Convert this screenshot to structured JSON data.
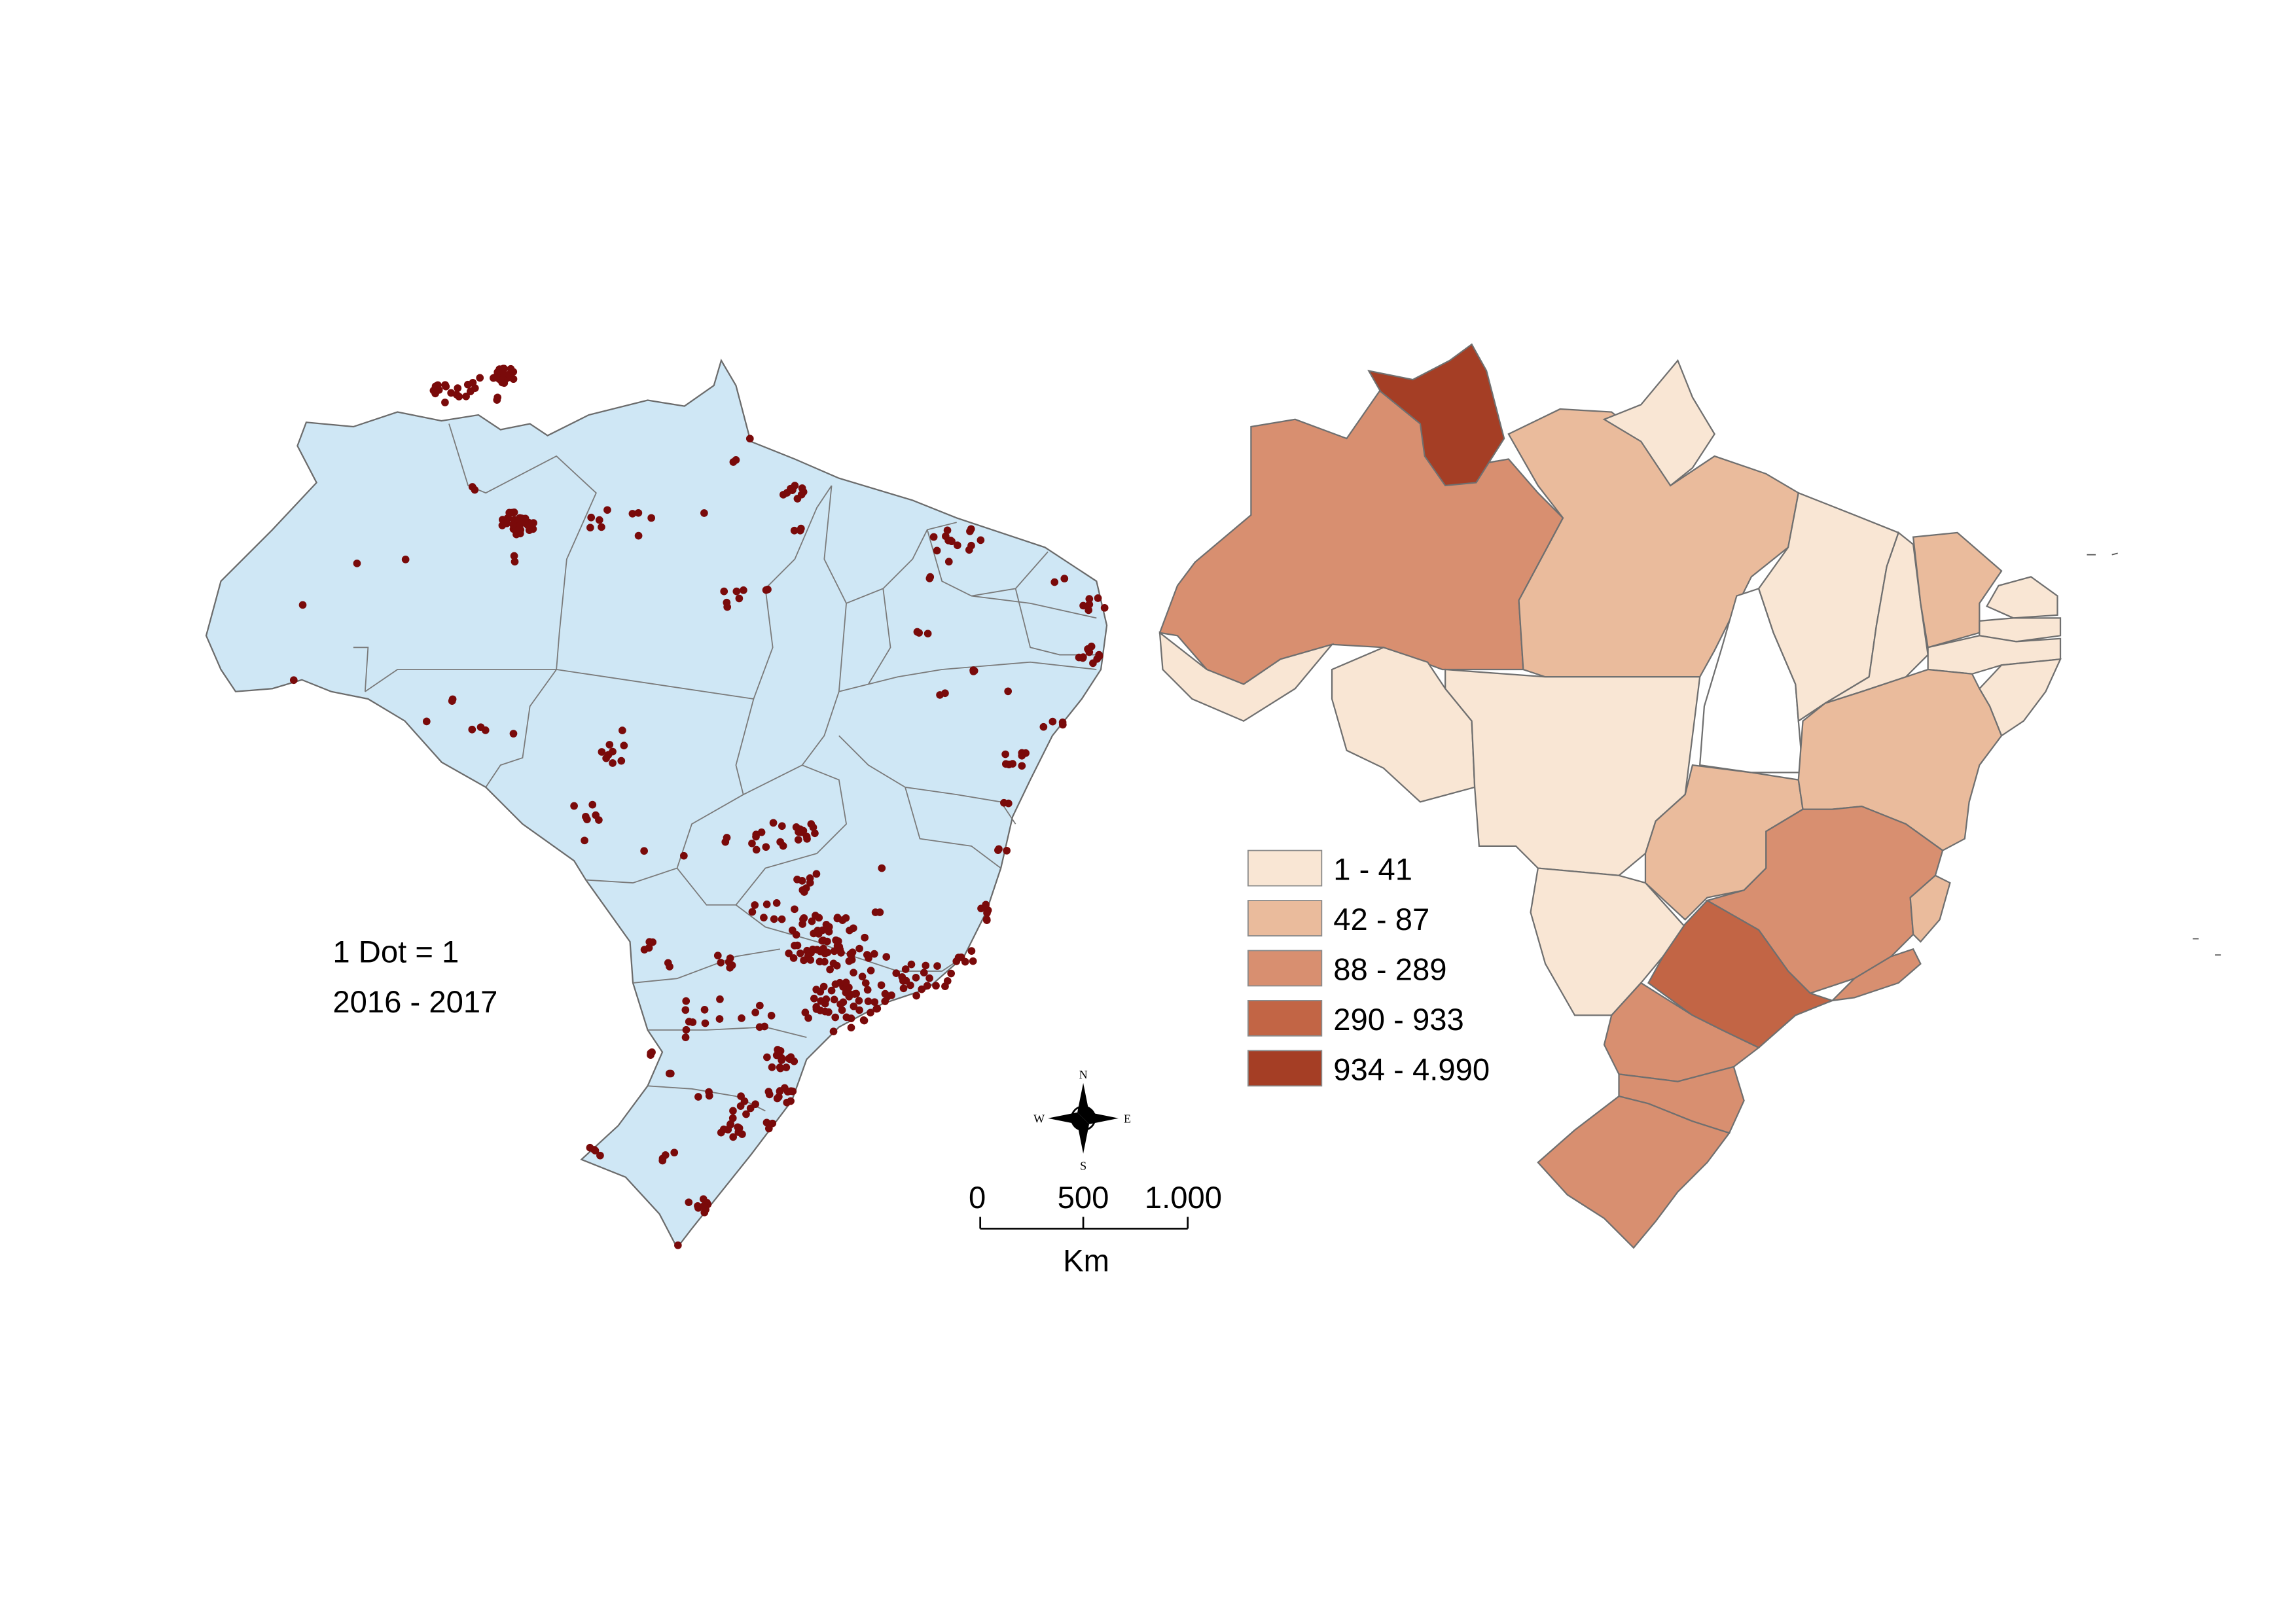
{
  "dot_map": {
    "caption_line1": "1 Dot = 1",
    "caption_line2": "2016 - 2017",
    "fill_color": "#cfe7f5",
    "dot_color": "#7a0a0a"
  },
  "choropleth": {
    "legend": [
      {
        "label": "1 - 41",
        "color": "#f9e6d4"
      },
      {
        "label": "42 - 87",
        "color": "#eabb9c"
      },
      {
        "label": "88 - 289",
        "color": "#d88f70"
      },
      {
        "label": "290 - 933",
        "color": "#c26545"
      },
      {
        "label": "934 - 4.990",
        "color": "#a53e25"
      }
    ],
    "no_data_color": "#ffffff"
  },
  "compass": {
    "n": "N",
    "s": "S",
    "e": "E",
    "w": "W"
  },
  "scale_bar": {
    "ticks": [
      "0",
      "500",
      "1.000"
    ],
    "unit": "Km"
  }
}
